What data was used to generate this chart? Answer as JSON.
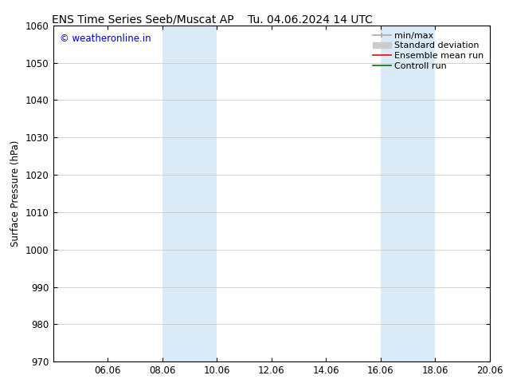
{
  "title": "ENS Time Series Seeb/Muscat AP",
  "title2": "Tu. 04.06.2024 14 UTC",
  "ylabel": "Surface Pressure (hPa)",
  "ylim": [
    970,
    1060
  ],
  "yticks": [
    970,
    980,
    990,
    1000,
    1010,
    1020,
    1030,
    1040,
    1050,
    1060
  ],
  "xtick_labels": [
    "06.06",
    "08.06",
    "10.06",
    "12.06",
    "14.06",
    "16.06",
    "18.06",
    "20.06"
  ],
  "xtick_positions": [
    2,
    4,
    6,
    8,
    10,
    12,
    14,
    16
  ],
  "xlim": [
    0,
    16
  ],
  "shaded_bands": [
    {
      "x_start": 4,
      "x_end": 6,
      "color": "#daeaf7"
    },
    {
      "x_start": 12,
      "x_end": 14,
      "color": "#daeaf7"
    }
  ],
  "copyright_text": "© weatheronline.in",
  "copyright_color": "#0000cc",
  "legend_items": [
    {
      "label": "min/max",
      "color": "#aaaaaa",
      "lw": 1.2,
      "style": "solid",
      "type": "minmax"
    },
    {
      "label": "Standard deviation",
      "color": "#cccccc",
      "lw": 7,
      "style": "solid",
      "type": "patch"
    },
    {
      "label": "Ensemble mean run",
      "color": "#ff0000",
      "lw": 1.2,
      "style": "solid",
      "type": "line"
    },
    {
      "label": "Controll run",
      "color": "#007700",
      "lw": 1.2,
      "style": "solid",
      "type": "line"
    }
  ],
  "background_color": "#ffffff",
  "grid_color": "#cccccc",
  "spine_color": "#000000",
  "tick_color": "#000000",
  "font_size": 8.5,
  "title_font_size": 10
}
